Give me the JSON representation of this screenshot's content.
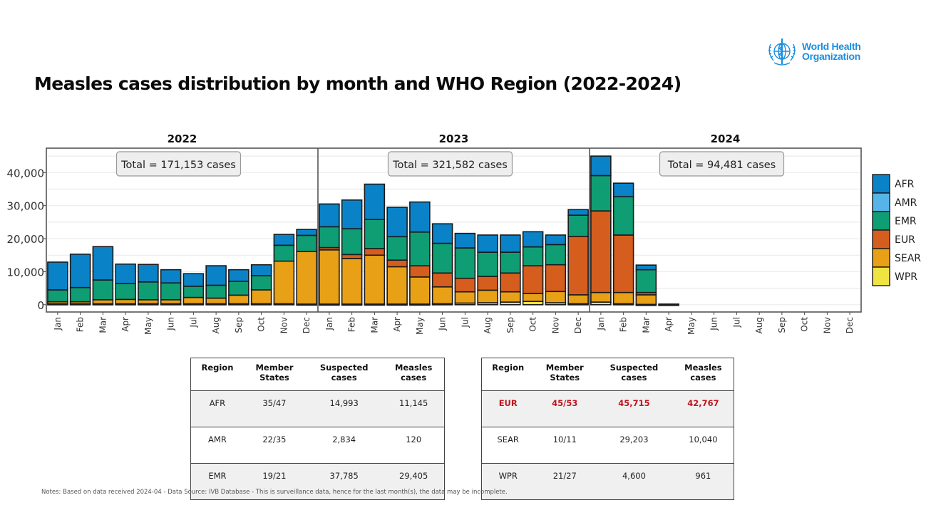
{
  "header": {
    "title": "Measles cases distribution by month and WHO Region (2022-2024)",
    "logo_line1": "World Health",
    "logo_line2": "Organization",
    "logo_icon": "who-emblem-icon"
  },
  "colors": {
    "AFR": "#0a82c8",
    "AMR": "#56b4e9",
    "EMR": "#0f9e73",
    "EUR": "#d55e1e",
    "SEAR": "#e8a117",
    "WPR": "#f0e442"
  },
  "chart_data": {
    "type": "bar",
    "stacked": true,
    "title": "Measles cases distribution by month and WHO Region (2022-2024)",
    "xlabel": "",
    "ylabel": "",
    "ylim": [
      -2200,
      47400
    ],
    "yticks": [
      0,
      10000,
      20000,
      30000,
      40000
    ],
    "ytick_labels": [
      "0",
      "10,000",
      "20,000",
      "30,000",
      "40,000"
    ],
    "gridlines_every": 5000,
    "grid": true,
    "legend": {
      "position": "right",
      "entries": [
        "AFR",
        "AMR",
        "EMR",
        "EUR",
        "SEAR",
        "WPR"
      ]
    },
    "categories": [
      "Jan",
      "Feb",
      "Mar",
      "Apr",
      "May",
      "Jun",
      "Jul",
      "Aug",
      "Sep",
      "Oct",
      "Nov",
      "Dec"
    ],
    "stack_order": [
      "WPR",
      "SEAR",
      "EUR",
      "EMR",
      "AMR",
      "AFR"
    ],
    "panels": [
      {
        "year": "2022",
        "total_label": "Total = 171,153 cases",
        "series": [
          {
            "name": "WPR",
            "values": [
              300,
              300,
              300,
              300,
              300,
              300,
              300,
              300,
              300,
              300,
              300,
              200
            ]
          },
          {
            "name": "SEAR",
            "values": [
              600,
              600,
              1200,
              1300,
              1200,
              1200,
              1900,
              1700,
              2600,
              4200,
              12900,
              15900
            ]
          },
          {
            "name": "EUR",
            "values": [
              0,
              0,
              0,
              0,
              0,
              0,
              0,
              0,
              0,
              0,
              0,
              0
            ]
          },
          {
            "name": "EMR",
            "values": [
              3600,
              4300,
              6000,
              4800,
              5400,
              5100,
              3400,
              3900,
              4200,
              4300,
              4800,
              4900
            ]
          },
          {
            "name": "AMR",
            "values": [
              0,
              0,
              0,
              0,
              0,
              0,
              0,
              0,
              0,
              0,
              0,
              0
            ]
          },
          {
            "name": "AFR",
            "values": [
              8400,
              10100,
              10100,
              5900,
              5300,
              4000,
              3800,
              5900,
              3500,
              3300,
              3300,
              1800
            ]
          }
        ]
      },
      {
        "year": "2023",
        "total_label": "Total = 321,582 cases",
        "series": [
          {
            "name": "WPR",
            "values": [
              200,
              200,
              200,
              200,
              200,
              300,
              500,
              600,
              800,
              1000,
              600,
              300
            ]
          },
          {
            "name": "SEAR",
            "values": [
              16400,
              13800,
              14800,
              11300,
              8200,
              5100,
              3400,
              3800,
              3100,
              2400,
              3400,
              2700
            ]
          },
          {
            "name": "EUR",
            "values": [
              700,
              1200,
              2000,
              2000,
              3400,
              4200,
              4100,
              4200,
              5700,
              8400,
              8100,
              17700
            ]
          },
          {
            "name": "EMR",
            "values": [
              6300,
              7800,
              8800,
              7100,
              10200,
              9000,
              9200,
              7300,
              6300,
              5700,
              6100,
              6400
            ]
          },
          {
            "name": "AMR",
            "values": [
              0,
              0,
              0,
              0,
              0,
              0,
              0,
              0,
              0,
              0,
              0,
              0
            ]
          },
          {
            "name": "AFR",
            "values": [
              6900,
              8700,
              10700,
              8900,
              9100,
              5900,
              4400,
              5200,
              5200,
              4600,
              2900,
              1700
            ]
          }
        ]
      },
      {
        "year": "2024",
        "total_label": "Total =  94,481 cases",
        "series": [
          {
            "name": "WPR",
            "values": [
              800,
              300,
              100,
              0,
              0,
              0,
              0,
              0,
              0,
              0,
              0,
              0
            ]
          },
          {
            "name": "SEAR",
            "values": [
              2900,
              3400,
              2900,
              100,
              0,
              0,
              0,
              0,
              0,
              0,
              0,
              0
            ]
          },
          {
            "name": "EUR",
            "values": [
              24700,
              17400,
              700,
              100,
              0,
              0,
              0,
              0,
              0,
              0,
              0,
              0
            ]
          },
          {
            "name": "EMR",
            "values": [
              10700,
              11600,
              6900,
              0,
              0,
              0,
              0,
              0,
              0,
              0,
              0,
              0
            ]
          },
          {
            "name": "AMR",
            "values": [
              0,
              0,
              0,
              0,
              0,
              0,
              0,
              0,
              0,
              0,
              0,
              0
            ]
          },
          {
            "name": "AFR",
            "values": [
              5900,
              4100,
              1400,
              0,
              0,
              0,
              0,
              0,
              0,
              0,
              0,
              0
            ]
          }
        ]
      }
    ]
  },
  "tables": [
    {
      "headers": [
        "Region",
        "Member\nStates",
        "Suspected\ncases",
        "Measles\ncases"
      ],
      "rows": [
        {
          "cells": [
            "AFR",
            "35/47",
            "14,993",
            "11,145"
          ],
          "style": "grey"
        },
        {
          "cells": [
            "AMR",
            "22/35",
            "2,834",
            "120"
          ],
          "style": "white"
        },
        {
          "cells": [
            "EMR",
            "19/21",
            "37,785",
            "29,405"
          ],
          "style": "grey"
        }
      ]
    },
    {
      "headers": [
        "Region",
        "Member\nStates",
        "Suspected\ncases",
        "Measles\ncases"
      ],
      "rows": [
        {
          "cells": [
            "EUR",
            "45/53",
            "45,715",
            "42,767"
          ],
          "style": "highlight"
        },
        {
          "cells": [
            "SEAR",
            "10/11",
            "29,203",
            "10,040"
          ],
          "style": "white"
        },
        {
          "cells": [
            "WPR",
            "21/27",
            "4,600",
            "961"
          ],
          "style": "grey"
        }
      ]
    }
  ],
  "notes": "Notes: Based on data received 2024-04 - Data Source: IVB Database - This is surveillance data, hence for the last month(s), the data may be incomplete."
}
